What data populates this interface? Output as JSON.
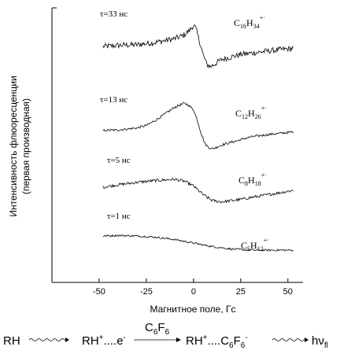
{
  "chart_data": {
    "type": "line",
    "title": "",
    "xlabel": "Магнитное поле, Гс",
    "ylabel_line1": "Интенсивность флюоресценции",
    "ylabel_line2": "(первая производная)",
    "xlim": [
      -75,
      58
    ],
    "xticks": [
      -50,
      -25,
      0,
      25,
      50
    ],
    "xtick_labels": [
      "-50",
      "-25",
      "0",
      "25",
      "50"
    ],
    "yticks_shown": false,
    "grid": false,
    "legend": "none",
    "series": [
      {
        "delay": "τ=33 нс",
        "formula": {
          "c": "C",
          "n": "16",
          "h": "H",
          "m": "34",
          "charge": "+·"
        },
        "x": [
          -48,
          -40,
          -30,
          -20,
          -10,
          -5,
          -2,
          0,
          1,
          3,
          5,
          7,
          9,
          12,
          15,
          20,
          25,
          30,
          40,
          53
        ],
        "y": [
          0.5,
          1.5,
          2.0,
          4.0,
          7.0,
          10.0,
          14.0,
          18.0,
          16.0,
          6.0,
          -6.0,
          -14.0,
          -16.0,
          -13.0,
          -10.0,
          -8.0,
          -6.0,
          -5.0,
          -3.0,
          -1.0
        ],
        "noise": 2.4,
        "color": "#000000"
      },
      {
        "delay": "τ=13 нс",
        "formula": {
          "c": "C",
          "n": "12",
          "h": "H",
          "m": "26",
          "charge": "+·"
        },
        "x": [
          -48,
          -40,
          -30,
          -25,
          -20,
          -15,
          -10,
          -5,
          -3,
          0,
          2,
          4,
          6,
          8,
          10,
          12,
          15,
          20,
          25,
          30,
          40,
          53
        ],
        "y": [
          0.0,
          0.5,
          2.0,
          4.0,
          8.0,
          13.0,
          18.0,
          21.0,
          20.0,
          16.0,
          8.0,
          -2.0,
          -10.0,
          -13.0,
          -14.0,
          -13.0,
          -11.0,
          -9.0,
          -7.0,
          -5.0,
          -3.0,
          -1.0
        ],
        "noise": 0.9,
        "color": "#000000"
      },
      {
        "delay": "τ=5 нс",
        "formula": {
          "c": "C",
          "n": "8",
          "h": "H",
          "m": "18",
          "charge": "+·"
        },
        "x": [
          -48,
          -40,
          -30,
          -20,
          -10,
          -5,
          0,
          5,
          10,
          15,
          20,
          25,
          30,
          40,
          53
        ],
        "y": [
          0.0,
          2.0,
          4.0,
          5.5,
          6.5,
          5.0,
          1.0,
          -6.0,
          -11.0,
          -12.0,
          -11.0,
          -10.0,
          -8.5,
          -6.0,
          -2.5
        ],
        "noise": 1.2,
        "color": "#000000"
      },
      {
        "delay": "τ=1 нс",
        "formula": {
          "c": "C",
          "n": "5",
          "h": "H",
          "m": "12",
          "charge": "+·"
        },
        "x": [
          -48,
          -40,
          -30,
          -20,
          -10,
          0,
          10,
          20,
          30,
          40,
          53
        ],
        "y": [
          2.0,
          2.5,
          2.0,
          1.0,
          -1.0,
          -4.0,
          -7.0,
          -9.0,
          -10.0,
          -10.0,
          -10.0
        ],
        "noise": 0.8,
        "color": "#000000"
      }
    ]
  },
  "scheme": {
    "rh": "RH",
    "pair1_cation": "RH",
    "pair1_cation_charge": "+",
    "pair1_dots": "....",
    "pair1_electron": "e",
    "pair1_electron_charge": "-",
    "acceptor_c": "C",
    "acceptor_c_n": "6",
    "acceptor_f": "F",
    "acceptor_f_n": "6",
    "pair2_cation": "RH",
    "pair2_cation_charge": "+",
    "pair2_dots": "....",
    "pair2_c": "C",
    "pair2_c_n": "6",
    "pair2_f": "F",
    "pair2_f_n": "6",
    "pair2_anion_charge": "-",
    "photon": "hν",
    "photon_sub": "fl"
  }
}
